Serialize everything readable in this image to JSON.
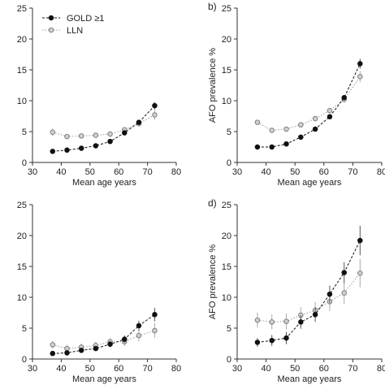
{
  "chart_data": [
    {
      "type": "scatter",
      "panel_label": "",
      "xlabel": "Mean age years",
      "ylabel": "",
      "xlim": [
        30,
        80
      ],
      "ylim": [
        0,
        25
      ],
      "xticks": [
        "30",
        "40",
        "50",
        "60",
        "70",
        "80"
      ],
      "yticks": [
        "0",
        "5",
        "10",
        "15",
        "20",
        "25"
      ],
      "legend": "top-left",
      "series": [
        {
          "name": "GOLD ≥1",
          "marker": "filled",
          "color": "#111111",
          "linestyle": "dashed",
          "x": [
            37,
            42,
            47,
            52,
            57,
            62,
            67,
            72.5
          ],
          "y": [
            1.8,
            2.0,
            2.3,
            2.7,
            3.4,
            4.8,
            6.5,
            9.2
          ],
          "err": [
            0.15,
            0.15,
            0.15,
            0.2,
            0.2,
            0.3,
            0.4,
            0.6
          ]
        },
        {
          "name": "LLN",
          "marker": "open",
          "color": "#999999",
          "linestyle": "dotted",
          "x": [
            37,
            42,
            47,
            52,
            57,
            62,
            67,
            72.5
          ],
          "y": [
            4.9,
            4.2,
            4.3,
            4.4,
            4.6,
            5.3,
            6.3,
            7.7
          ],
          "err": [
            0.6,
            0.3,
            0.3,
            0.3,
            0.3,
            0.4,
            0.5,
            0.8
          ]
        }
      ]
    },
    {
      "type": "scatter",
      "panel_label": "b)",
      "xlabel": "Mean age years",
      "ylabel": "AFO prevalence %",
      "xlim": [
        30,
        80
      ],
      "ylim": [
        0,
        25
      ],
      "xticks": [
        "30",
        "40",
        "50",
        "60",
        "70",
        "80"
      ],
      "yticks": [
        "0",
        "5",
        "10",
        "15",
        "20",
        "25"
      ],
      "series": [
        {
          "name": "GOLD ≥1",
          "marker": "filled",
          "color": "#111111",
          "linestyle": "dashed",
          "x": [
            37,
            42,
            47,
            52,
            57,
            62,
            67,
            72.5
          ],
          "y": [
            2.5,
            2.5,
            3.0,
            4.1,
            5.4,
            7.4,
            10.5,
            16.0
          ],
          "err": [
            0.15,
            0.15,
            0.2,
            0.2,
            0.2,
            0.3,
            0.4,
            0.8
          ]
        },
        {
          "name": "LLN",
          "marker": "open",
          "color": "#999999",
          "linestyle": "dotted",
          "x": [
            37,
            42,
            47,
            52,
            57,
            62,
            67,
            72.5
          ],
          "y": [
            6.5,
            5.2,
            5.4,
            6.1,
            7.1,
            8.4,
            10.2,
            13.9
          ],
          "err": [
            0.2,
            0.2,
            0.2,
            0.2,
            0.25,
            0.3,
            0.4,
            0.9
          ]
        }
      ]
    },
    {
      "type": "scatter",
      "panel_label": "",
      "xlabel": "Mean age years",
      "ylabel": "",
      "xlim": [
        30,
        80
      ],
      "ylim": [
        0,
        25
      ],
      "xticks": [
        "30",
        "40",
        "50",
        "60",
        "70",
        "80"
      ],
      "yticks": [
        "0",
        "5",
        "10",
        "15",
        "20",
        "25"
      ],
      "series": [
        {
          "name": "GOLD ≥1",
          "marker": "filled",
          "color": "#111111",
          "linestyle": "dashed",
          "x": [
            37,
            42,
            47,
            52,
            57,
            62,
            67,
            72.5
          ],
          "y": [
            0.9,
            1.0,
            1.4,
            1.7,
            2.4,
            3.2,
            5.4,
            7.2
          ],
          "err": [
            0.3,
            0.3,
            0.4,
            0.4,
            0.5,
            0.6,
            0.8,
            1.1
          ]
        },
        {
          "name": "LLN",
          "marker": "open",
          "color": "#999999",
          "linestyle": "dotted",
          "x": [
            37,
            42,
            47,
            52,
            57,
            62,
            67,
            72.5
          ],
          "y": [
            2.3,
            1.7,
            1.9,
            2.2,
            2.8,
            2.8,
            3.8,
            4.6
          ],
          "err": [
            0.6,
            0.6,
            0.6,
            0.6,
            0.6,
            0.7,
            0.9,
            1.2
          ]
        }
      ]
    },
    {
      "type": "scatter",
      "panel_label": "d)",
      "xlabel": "Mean age years",
      "ylabel": "AFO prevalence %",
      "xlim": [
        30,
        80
      ],
      "ylim": [
        0,
        25
      ],
      "xticks": [
        "30",
        "40",
        "50",
        "60",
        "70",
        "80"
      ],
      "yticks": [
        "0",
        "5",
        "10",
        "15",
        "20",
        "25"
      ],
      "series": [
        {
          "name": "GOLD ≥1",
          "marker": "filled",
          "color": "#111111",
          "linestyle": "dashed",
          "x": [
            37,
            42,
            47,
            52,
            57,
            62,
            67,
            72.5
          ],
          "y": [
            2.7,
            3.0,
            3.4,
            6.0,
            7.2,
            10.5,
            14.0,
            19.2
          ],
          "err": [
            0.7,
            0.9,
            1.0,
            1.1,
            1.2,
            1.4,
            1.7,
            2.4
          ]
        },
        {
          "name": "LLN",
          "marker": "open",
          "color": "#999999",
          "linestyle": "dotted",
          "x": [
            37,
            42,
            47,
            52,
            57,
            62,
            67,
            72.5
          ],
          "y": [
            6.3,
            6.0,
            6.1,
            7.1,
            7.9,
            9.3,
            10.7,
            13.9
          ],
          "err": [
            1.2,
            1.2,
            1.3,
            1.3,
            1.3,
            1.5,
            1.8,
            2.3
          ]
        }
      ]
    }
  ]
}
